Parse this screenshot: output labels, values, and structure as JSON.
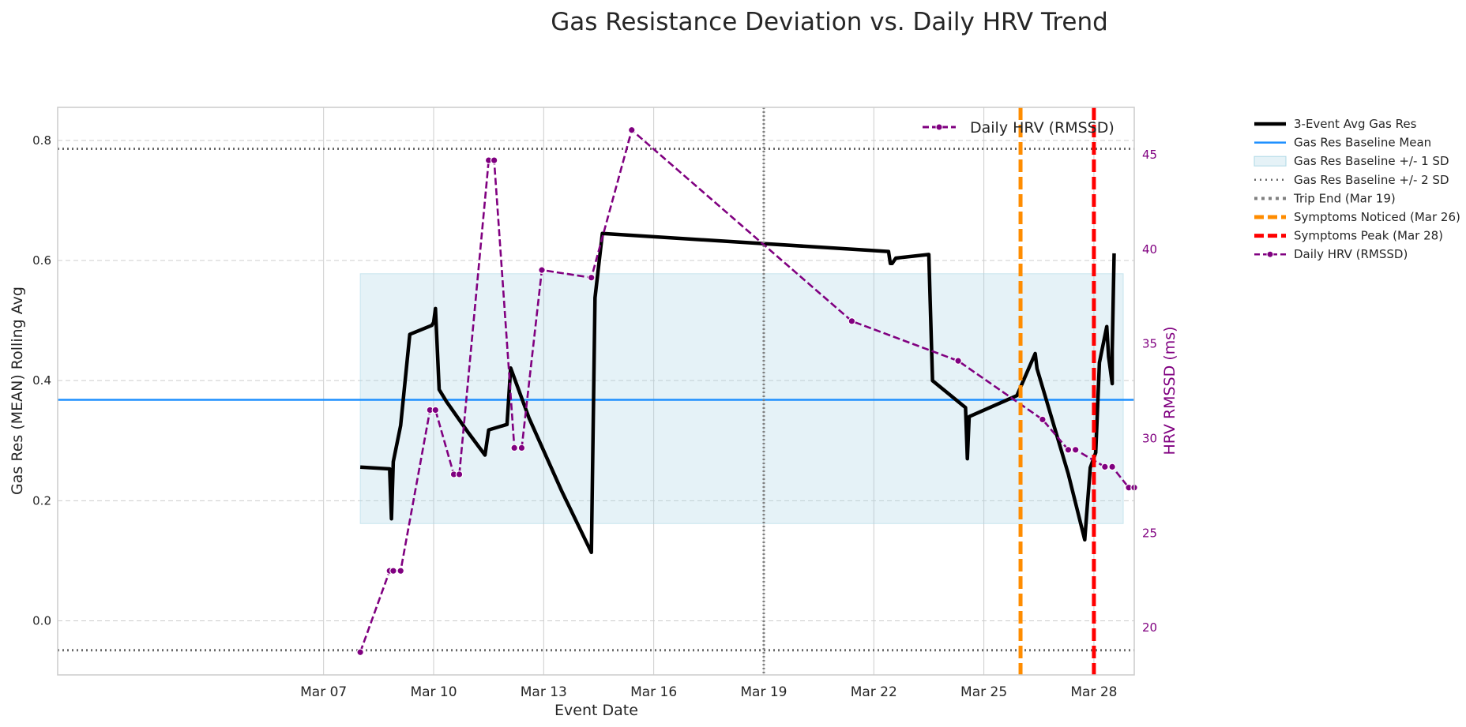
{
  "chart_data": {
    "type": "line",
    "title": "Gas Resistance Deviation vs. Daily HRV Trend",
    "xlabel": "Event Date",
    "ylabel": "Gas Res (MEAN) Rolling Avg",
    "y2label": "HRV RMSSD (ms)",
    "x_range_days": [
      -0.25,
      29.1
    ],
    "ylim": [
      -0.09,
      0.855
    ],
    "y2lim": [
      17.5,
      47.5
    ],
    "x_ticks": [
      {
        "day": 7,
        "label": "Mar 07"
      },
      {
        "day": 10,
        "label": "Mar 10"
      },
      {
        "day": 13,
        "label": "Mar 13"
      },
      {
        "day": 16,
        "label": "Mar 16"
      },
      {
        "day": 19,
        "label": "Mar 19"
      },
      {
        "day": 22,
        "label": "Mar 22"
      },
      {
        "day": 25,
        "label": "Mar 25"
      },
      {
        "day": 28,
        "label": "Mar 28"
      }
    ],
    "y_ticks": [
      0.0,
      0.2,
      0.4,
      0.6,
      0.8
    ],
    "y_tick_labels": [
      "0.0",
      "0.2",
      "0.4",
      "0.6",
      "0.8"
    ],
    "y2_ticks": [
      20,
      25,
      30,
      35,
      40,
      45
    ],
    "y2_tick_labels": [
      "20",
      "25",
      "30",
      "35",
      "40",
      "45"
    ],
    "baseline": {
      "mean": 0.368,
      "sd1_low": 0.162,
      "sd1_high": 0.578,
      "sd2_low": -0.049,
      "sd2_high": 0.786,
      "band_x": [
        8.0,
        28.8
      ]
    },
    "series": [
      {
        "name": "3-Event Avg Gas Res",
        "color": "#000000",
        "x": [
          8.0,
          8.8,
          8.85,
          8.9,
          9.1,
          9.35,
          9.95,
          10.0,
          10.05,
          10.15,
          10.35,
          10.95,
          11.4,
          11.5,
          12.0,
          12.1,
          12.6,
          13.5,
          14.3,
          14.4,
          14.6,
          22.4,
          22.45,
          22.5,
          22.6,
          23.5,
          23.6,
          24.5,
          24.55,
          24.6,
          25.9,
          26.4,
          26.45,
          27.3,
          27.75,
          27.8,
          27.9,
          28.05,
          28.15,
          28.35,
          28.4,
          28.5,
          28.5,
          28.55
        ],
        "y": [
          0.256,
          0.253,
          0.17,
          0.265,
          0.325,
          0.477,
          0.492,
          0.497,
          0.52,
          0.385,
          0.365,
          0.313,
          0.276,
          0.318,
          0.327,
          0.421,
          0.338,
          0.215,
          0.114,
          0.538,
          0.645,
          0.615,
          0.595,
          0.595,
          0.604,
          0.61,
          0.4,
          0.355,
          0.27,
          0.34,
          0.375,
          0.445,
          0.42,
          0.245,
          0.135,
          0.175,
          0.255,
          0.28,
          0.43,
          0.49,
          0.44,
          0.395,
          0.45,
          0.612
        ]
      },
      {
        "name": "Daily HRV (RMSSD)",
        "color": "#800080",
        "x": [
          8.0,
          8.8,
          8.9,
          9.1,
          9.9,
          10.05,
          10.55,
          10.7,
          11.5,
          11.65,
          12.2,
          12.4,
          12.95,
          14.3,
          15.4,
          21.4,
          24.3,
          26.6,
          27.3,
          27.5,
          28.3,
          28.5,
          28.95,
          29.1
        ],
        "y": [
          18.7,
          23.0,
          23.0,
          23.0,
          31.5,
          31.5,
          28.1,
          28.1,
          44.7,
          44.7,
          29.5,
          29.5,
          38.9,
          38.5,
          46.3,
          36.2,
          34.1,
          31.0,
          29.4,
          29.4,
          28.5,
          28.5,
          27.4,
          27.4
        ]
      }
    ],
    "vlines": [
      {
        "name": "Trip End (Mar 19)",
        "day": 19,
        "color": "#808080",
        "style": "dotted"
      },
      {
        "name": "Symptoms Noticed (Mar 26)",
        "day": 26.0,
        "color": "#FF8C00",
        "style": "dashed"
      },
      {
        "name": "Symptoms Peak (Mar 28)",
        "day": 28.0,
        "color": "#FF0000",
        "style": "dashed"
      }
    ],
    "legend": {
      "position": "outside-right",
      "entries": [
        "3-Event Avg Gas Res",
        "Gas Res Baseline Mean",
        "Gas Res Baseline +/- 1 SD",
        "Gas Res Baseline +/- 2 SD",
        "Trip End (Mar 19)",
        "Symptoms Noticed (Mar 26)",
        "Symptoms Peak (Mar 28)",
        "Daily HRV (RMSSD)"
      ],
      "inner_entry": "Daily HRV (RMSSD)"
    },
    "colors": {
      "baseline_mean": "#1E90FF",
      "sd1_fill": "#ADD8E6",
      "sd2_line": "#696969",
      "grid": "#CCCCCC",
      "frame": "#CCCCCC",
      "hrv": "#800080"
    }
  }
}
